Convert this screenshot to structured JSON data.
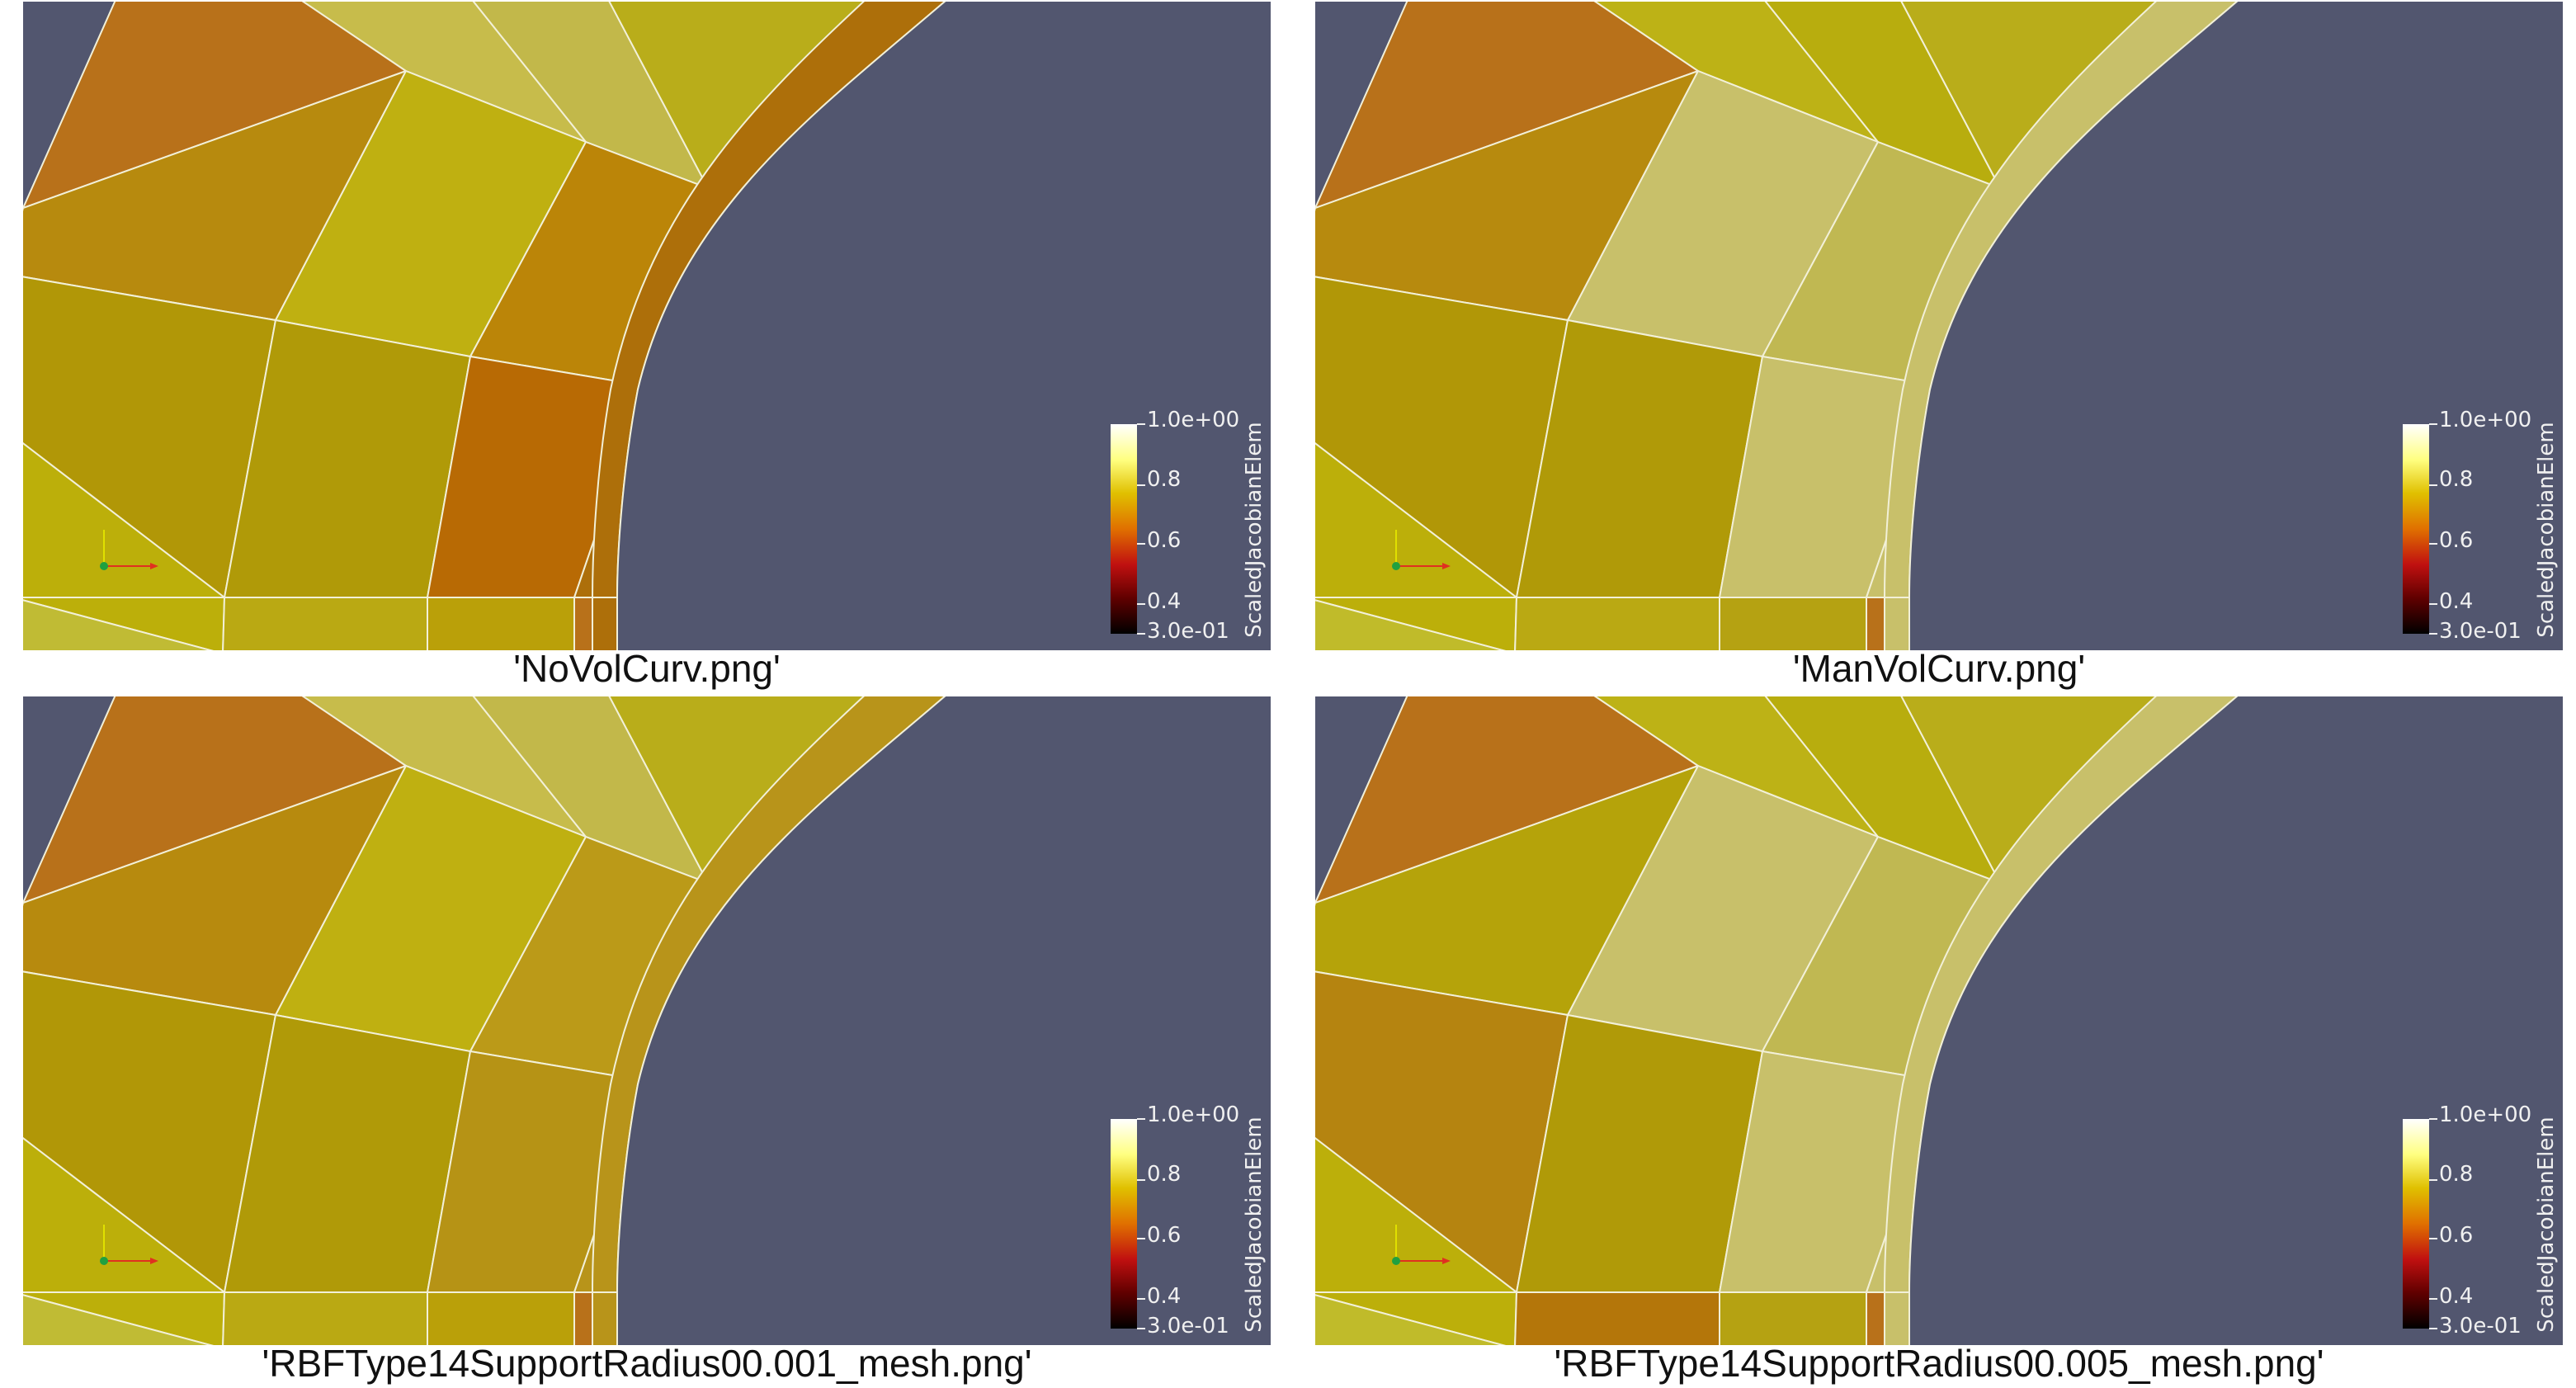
{
  "colorbar": {
    "title": "ScaledJacobianElem",
    "ticks": [
      "1.0e+00",
      "0.8",
      "0.6",
      "0.4",
      "3.0e-01"
    ],
    "range": [
      0.3,
      1.0
    ],
    "colormap_stops": [
      "#ffffff",
      "#ffff80",
      "#e0c000",
      "#e07000",
      "#c01010",
      "#600000",
      "#000000"
    ]
  },
  "colors": {
    "background_obstacle": "#52566f",
    "mesh_lines": "#f2f0d8"
  },
  "panels": [
    {
      "caption": "'NoVolCurv.png'",
      "cell_colors": [
        "#b8711a",
        "#b78a0e",
        "#b19707",
        "#bcaf0a",
        "#c0bb34",
        "#c7bc4b",
        "#bfb011",
        "#b09a08",
        "#baa913",
        "#bbb525",
        "#c2b84a",
        "#bb8508",
        "#b86a04",
        "#baa009",
        "#b59c0c",
        "#b9ad1a",
        "#c1b84a",
        "#ad6f0a"
      ]
    },
    {
      "caption": "'ManVolCurv.png'",
      "cell_colors": [
        "#b8711a",
        "#b78a0e",
        "#b19707",
        "#bcaf0a",
        "#c0bb2a",
        "#bdb216",
        "#c8c06a",
        "#b09a08",
        "#baa913",
        "#bbb525",
        "#b8ad0e",
        "#c0b852",
        "#c8c06a",
        "#b5a212",
        "#b59c0c",
        "#b9ad1a",
        "#b8ad0e",
        "#c8c06a"
      ]
    },
    {
      "caption": "'RBFType14SupportRadius00.001_mesh.png'",
      "cell_colors": [
        "#b8711a",
        "#b78a0e",
        "#b19707",
        "#bcaf0a",
        "#c0bb34",
        "#c7bc4b",
        "#bfb011",
        "#b09a08",
        "#baa913",
        "#bbb525",
        "#c2b84a",
        "#bb9a18",
        "#b69315",
        "#baa009",
        "#b59c0c",
        "#b9ad1a",
        "#c1b84a",
        "#b8941a"
      ]
    },
    {
      "caption": "'RBFType14SupportRadius00.005_mesh.png'",
      "cell_colors": [
        "#b8711a",
        "#b5a30a",
        "#b58410",
        "#bcaf0a",
        "#c0bb2a",
        "#bdb216",
        "#c8c06a",
        "#b09a08",
        "#b4760a",
        "#bbb525",
        "#b8ad0e",
        "#c0b852",
        "#c8c06a",
        "#b5a212",
        "#b35c04",
        "#b9ad1a",
        "#b8ad0e",
        "#c8c06a"
      ]
    }
  ]
}
